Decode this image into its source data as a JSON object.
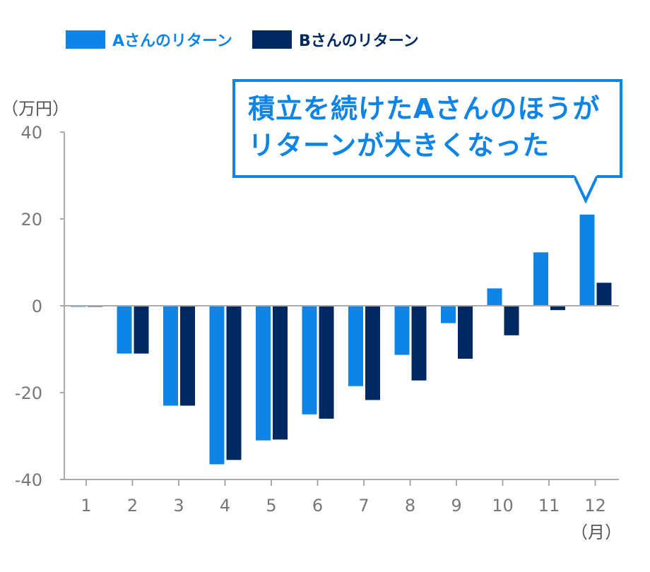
{
  "legend": {
    "series_a": "Aさんのリターン",
    "series_b": "Bさんのリターン"
  },
  "axes": {
    "y_unit": "（万円）",
    "x_unit": "（月）"
  },
  "callout": {
    "line1": "積立を続けたAさんのほうが",
    "line2": "リターンが大きくなった"
  },
  "colors": {
    "series_a": "#0d84e6",
    "series_b": "#002861",
    "axis": "#aaaaaa",
    "tick_text": "#777777"
  },
  "chart_data": {
    "type": "bar",
    "categories": [
      "1",
      "2",
      "3",
      "4",
      "5",
      "6",
      "7",
      "8",
      "9",
      "10",
      "11",
      "12"
    ],
    "series": [
      {
        "name": "Aさんのリターン",
        "values": [
          0,
          -11,
          -23,
          -36.5,
          -31,
          -25,
          -18.5,
          -11.3,
          -4,
          4,
          12.3,
          21
        ]
      },
      {
        "name": "Bさんのリターン",
        "values": [
          0,
          -11,
          -23,
          -35.5,
          -30.8,
          -26,
          -21.7,
          -17.2,
          -12.2,
          -6.8,
          -1,
          5.3
        ]
      }
    ],
    "ylim": [
      -40,
      40
    ],
    "yticks": [
      -40,
      -20,
      0,
      20,
      40
    ],
    "ylabel": "（万円）",
    "xlabel": "（月）",
    "legend_position": "top-left",
    "grid": false
  }
}
